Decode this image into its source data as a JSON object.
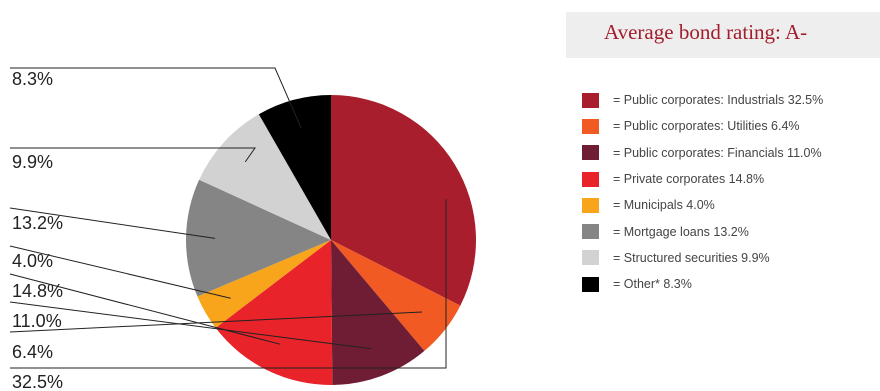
{
  "header": {
    "title": "Average bond rating: A-"
  },
  "chart_data": {
    "type": "pie",
    "start_angle_deg": 0,
    "direction": "clockwise",
    "slices": [
      {
        "label": "= Public corporates: Industrials 32.5%",
        "value": 32.5,
        "value_label": "32.5%",
        "color": "#a81e2d"
      },
      {
        "label": "= Public corporates: Utilities 6.4%",
        "value": 6.4,
        "value_label": "6.4%",
        "color": "#f15a22"
      },
      {
        "label": "= Public corporates: Financials 11.0%",
        "value": 11.0,
        "value_label": "11.0%",
        "color": "#6f1d35"
      },
      {
        "label": "= Private corporates 14.8%",
        "value": 14.8,
        "value_label": "14.8%",
        "color": "#e8232a"
      },
      {
        "label": "= Municipals 4.0%",
        "value": 4.0,
        "value_label": "4.0%",
        "color": "#f8a51b"
      },
      {
        "label": "= Mortgage loans 13.2%",
        "value": 13.2,
        "value_label": "13.2%",
        "color": "#858585"
      },
      {
        "label": "= Structured securities 9.9%",
        "value": 9.9,
        "value_label": "9.9%",
        "color": "#d2d2d2"
      },
      {
        "label": "= Other* 8.3%",
        "value": 8.3,
        "value_label": "8.3%",
        "color": "#000000"
      }
    ]
  }
}
